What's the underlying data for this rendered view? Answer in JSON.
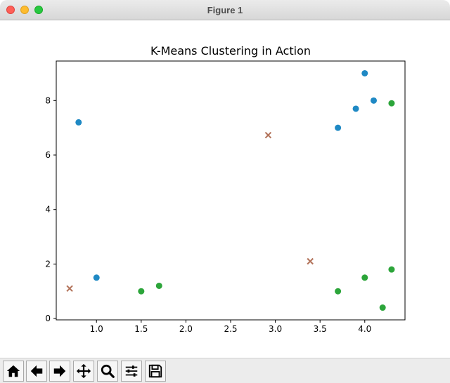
{
  "window": {
    "title": "Figure 1"
  },
  "chart_data": {
    "type": "scatter",
    "title": "K-Means Clustering in Action",
    "xlabel": "",
    "ylabel": "",
    "xlim": [
      0.55,
      4.45
    ],
    "ylim": [
      -0.05,
      9.45
    ],
    "xticks": [
      1.0,
      1.5,
      2.0,
      2.5,
      3.0,
      3.5,
      4.0
    ],
    "yticks": [
      0,
      2,
      4,
      6,
      8
    ],
    "grid": false,
    "series": [
      {
        "color": "#1f89c4",
        "marker": "circle",
        "points": [
          [
            0.8,
            7.2
          ],
          [
            1.0,
            1.5
          ],
          [
            3.7,
            7.0
          ],
          [
            3.9,
            7.7
          ],
          [
            4.0,
            9.0
          ],
          [
            4.1,
            8.0
          ]
        ]
      },
      {
        "color": "#2ca53a",
        "marker": "circle",
        "points": [
          [
            1.5,
            1.0
          ],
          [
            1.7,
            1.2
          ],
          [
            3.7,
            1.0
          ],
          [
            4.0,
            1.5
          ],
          [
            4.2,
            0.4
          ],
          [
            4.3,
            1.8
          ],
          [
            4.3,
            7.9
          ]
        ]
      },
      {
        "color": "#a55a3d",
        "marker": "x",
        "points": [
          [
            0.7,
            1.1
          ],
          [
            2.92,
            6.73
          ],
          [
            3.39,
            2.1
          ]
        ]
      }
    ]
  },
  "toolbar": {
    "buttons": [
      {
        "name": "home",
        "icon": "home-icon"
      },
      {
        "name": "back",
        "icon": "arrow-left-icon"
      },
      {
        "name": "forward",
        "icon": "arrow-right-icon"
      },
      {
        "name": "pan",
        "icon": "move-icon"
      },
      {
        "name": "zoom",
        "icon": "magnifier-icon"
      },
      {
        "name": "configure-subplots",
        "icon": "sliders-icon"
      },
      {
        "name": "save",
        "icon": "floppy-disk-icon"
      }
    ]
  }
}
